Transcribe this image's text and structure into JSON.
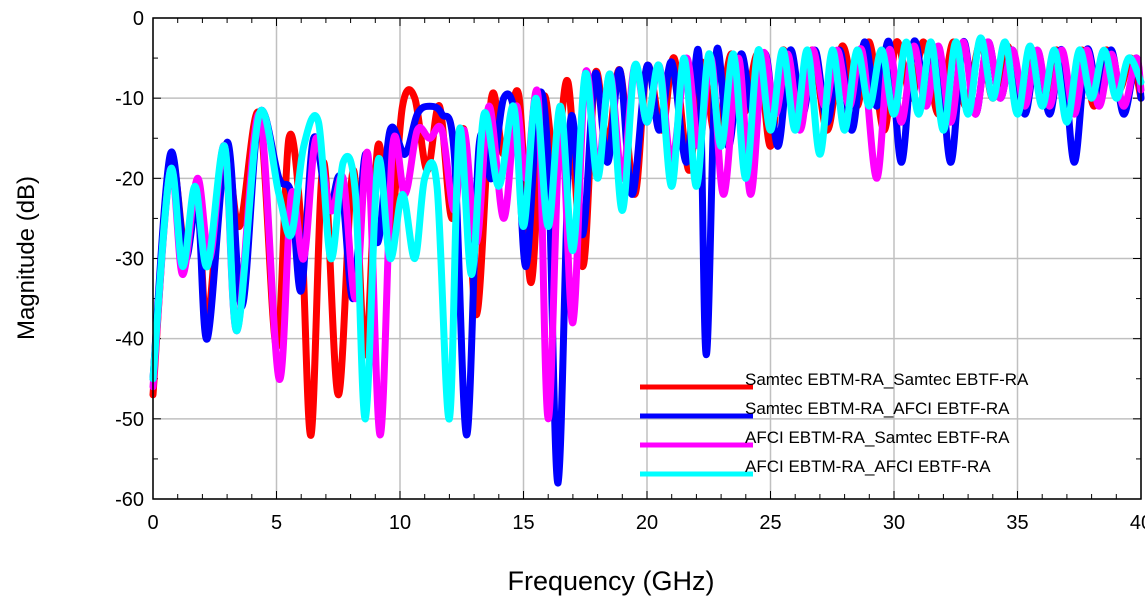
{
  "chart_data": {
    "type": "line",
    "title": "",
    "xlabel": "Frequency (GHz)",
    "ylabel": "Magnitude (dB)",
    "xlim": [
      0,
      40
    ],
    "ylim": [
      -60,
      0
    ],
    "grid": true,
    "legend_position": "bottom-right",
    "x_ticks": [
      "0",
      "5",
      "10",
      "15",
      "20",
      "25",
      "30",
      "35",
      "40"
    ],
    "y_ticks": [
      "0",
      "-10",
      "-20",
      "-30",
      "-40",
      "-50",
      "-60"
    ],
    "series": [
      {
        "name": "Samtec EBTM-RA_Samtec EBTF-RA",
        "color": "#ff0000",
        "x": [
          0,
          0.7,
          1.3,
          1.8,
          2.2,
          2.9,
          3.5,
          4.3,
          5,
          5.5,
          6,
          6.4,
          6.9,
          7.5,
          8.1,
          8.6,
          9.1,
          9.6,
          10.1,
          10.6,
          11.1,
          11.6,
          12.1,
          12.6,
          13.1,
          13.7,
          14.2,
          14.8,
          15.3,
          15.8,
          16.3,
          16.8,
          17.4,
          17.9,
          18.4,
          18.9,
          19.5,
          20,
          20.6,
          21.1,
          21.7,
          22.2,
          22.8,
          23.4,
          23.9,
          24.5,
          25,
          25.5,
          26.1,
          26.7,
          27.3,
          27.9,
          28.5,
          29,
          29.6,
          30.1,
          30.7,
          31.2,
          31.8,
          32.4,
          32.9,
          33.5,
          34,
          34.6,
          35.1,
          35.6,
          36.1,
          36.6,
          37.1,
          37.6,
          38.1,
          38.6,
          39.1,
          39.6,
          40
        ],
        "y": [
          -47,
          -18,
          -29,
          -23,
          -38,
          -16,
          -26,
          -12,
          -41,
          -15,
          -26,
          -52,
          -18,
          -47,
          -19,
          -42,
          -16,
          -27,
          -11,
          -10,
          -19,
          -11,
          -25,
          -14,
          -37,
          -10,
          -17,
          -9.5,
          -33,
          -10,
          -19,
          -8,
          -31,
          -7,
          -16,
          -6.5,
          -22,
          -6,
          -14,
          -5,
          -19,
          -5.5,
          -15,
          -4.5,
          -12,
          -4.5,
          -16,
          -4,
          -12,
          -4,
          -14,
          -3.5,
          -11,
          -3,
          -14,
          -3,
          -10,
          -3,
          -12,
          -3,
          -11,
          -3,
          -10,
          -3.5,
          -11,
          -4,
          -10,
          -4,
          -12,
          -4,
          -11,
          -4,
          -9,
          -5,
          -10
        ]
      },
      {
        "name": "Samtec EBTM-RA_AFCI EBTF-RA",
        "color": "#0000ff",
        "x": [
          0,
          0.7,
          1.3,
          1.8,
          2.2,
          3.0,
          3.6,
          4.3,
          5.1,
          5.6,
          6.0,
          6.5,
          7.1,
          7.6,
          8.1,
          8.6,
          9.1,
          9.6,
          10.2,
          10.7,
          11.2,
          11.7,
          12.2,
          12.7,
          13.2,
          13.7,
          14.2,
          14.7,
          15.1,
          15.6,
          16.0,
          16.4,
          16.9,
          17.4,
          17.9,
          18.4,
          18.9,
          19.4,
          20,
          20.5,
          21,
          21.6,
          22.1,
          22.4,
          22.8,
          23.3,
          23.8,
          24.3,
          24.8,
          25.3,
          25.8,
          26.3,
          26.8,
          27.3,
          27.8,
          28.3,
          28.8,
          29.3,
          29.8,
          30.3,
          30.8,
          31.3,
          31.8,
          32.3,
          32.8,
          33.3,
          33.8,
          34.3,
          34.8,
          35.3,
          35.8,
          36.3,
          36.8,
          37.3,
          37.8,
          38.3,
          38.8,
          39.3,
          39.8,
          40
        ],
        "y": [
          -45,
          -17,
          -30,
          -23,
          -40,
          -15.5,
          -36,
          -12,
          -20,
          -22,
          -34,
          -15,
          -24,
          -20,
          -35,
          -17,
          -28,
          -14,
          -17,
          -12,
          -11,
          -12,
          -17,
          -52,
          -16,
          -20,
          -10,
          -13,
          -31,
          -10,
          -18,
          -58,
          -13,
          -27,
          -7,
          -18,
          -6.5,
          -22,
          -6,
          -14,
          -5.5,
          -18,
          -4.5,
          -42,
          -4.5,
          -16,
          -4.5,
          -12,
          -4.5,
          -16,
          -4,
          -12,
          -4,
          -13,
          -4,
          -14,
          -3,
          -11,
          -3,
          -18,
          -3,
          -10,
          -4,
          -18,
          -3,
          -12,
          -3,
          -10,
          -4,
          -12,
          -4,
          -12,
          -4,
          -18,
          -4,
          -10,
          -4,
          -12,
          -5,
          -10
        ]
      },
      {
        "name": "AFCI EBTM-RA_Samtec EBTF-RA",
        "color": "#ff00ff",
        "x": [
          0,
          0.7,
          1.2,
          1.8,
          2.3,
          2.9,
          3.4,
          4.3,
          5.1,
          5.6,
          6.1,
          6.6,
          7.2,
          7.7,
          8.2,
          8.7,
          9.2,
          9.7,
          10.2,
          10.7,
          11.2,
          11.7,
          12.2,
          12.6,
          13.1,
          13.6,
          14.2,
          14.7,
          15.1,
          15.6,
          16.0,
          16.5,
          17.0,
          17.5,
          18,
          18.5,
          19,
          19.5,
          20,
          20.5,
          21,
          21.6,
          22.1,
          22.6,
          23.1,
          23.7,
          24.2,
          24.7,
          25.2,
          25.7,
          26.2,
          26.7,
          27.2,
          27.7,
          28.2,
          28.7,
          29.3,
          29.8,
          30.3,
          30.8,
          31.3,
          31.8,
          32.3,
          32.8,
          33.3,
          33.8,
          34.3,
          34.8,
          35.3,
          35.8,
          36.3,
          36.8,
          37.3,
          37.8,
          38.3,
          38.8,
          39.3,
          39.8,
          40
        ],
        "y": [
          -46,
          -19,
          -32,
          -20,
          -30,
          -16,
          -39,
          -12,
          -45,
          -22,
          -30,
          -15,
          -24,
          -20,
          -35,
          -17,
          -52,
          -16,
          -22,
          -14,
          -15,
          -14,
          -24,
          -14,
          -28,
          -11,
          -25,
          -11,
          -20,
          -10,
          -50,
          -13,
          -38,
          -7,
          -19,
          -7,
          -20,
          -6,
          -13,
          -6,
          -18,
          -5,
          -16,
          -5,
          -22,
          -5,
          -22,
          -4.5,
          -12,
          -4.5,
          -14,
          -4,
          -11,
          -4,
          -11,
          -4,
          -20,
          -4,
          -13,
          -3.5,
          -11,
          -3.5,
          -13,
          -3,
          -12,
          -3,
          -10,
          -4,
          -11,
          -4,
          -11,
          -4,
          -12,
          -4,
          -11,
          -4.5,
          -11,
          -5,
          -9
        ]
      },
      {
        "name": "AFCI EBTM-RA_AFCI EBTF-RA",
        "color": "#00ffff",
        "x": [
          0,
          0.7,
          1.2,
          1.7,
          2.2,
          2.9,
          3.4,
          4.3,
          5.1,
          5.6,
          6.1,
          6.7,
          7.2,
          7.7,
          8.2,
          8.6,
          9.1,
          9.6,
          10.1,
          10.6,
          11,
          11.5,
          12,
          12.4,
          12.9,
          13.4,
          14,
          14.6,
          15,
          15.5,
          16,
          16.5,
          17,
          17.5,
          18,
          18.5,
          19,
          19.5,
          20,
          20.5,
          21,
          21.5,
          22,
          22.5,
          23,
          23.5,
          24,
          24.5,
          25,
          25.5,
          26,
          26.5,
          27,
          27.5,
          28,
          28.5,
          29,
          29.5,
          30,
          30.5,
          31,
          31.5,
          32,
          32.5,
          33,
          33.5,
          34,
          34.5,
          35,
          35.5,
          36,
          36.5,
          37,
          37.5,
          38,
          38.5,
          39,
          39.5,
          40
        ],
        "y": [
          -45,
          -19,
          -31,
          -21,
          -31,
          -16,
          -39,
          -12,
          -22,
          -27,
          -16,
          -13,
          -30,
          -18,
          -22,
          -50,
          -18,
          -30,
          -22,
          -30,
          -20,
          -21,
          -50,
          -14,
          -32,
          -12,
          -21,
          -11,
          -26,
          -10,
          -26,
          -11,
          -29,
          -7,
          -20,
          -7,
          -24,
          -6,
          -13,
          -6,
          -21,
          -5,
          -21,
          -4.5,
          -16,
          -4.5,
          -20,
          -4,
          -14,
          -4,
          -14,
          -4,
          -17,
          -4,
          -14,
          -4,
          -11,
          -4,
          -12,
          -3,
          -12,
          -3,
          -14,
          -3,
          -12,
          -2.5,
          -10,
          -3,
          -12,
          -3.5,
          -11,
          -4,
          -13,
          -4,
          -10,
          -4,
          -10,
          -5,
          -8
        ]
      }
    ]
  }
}
